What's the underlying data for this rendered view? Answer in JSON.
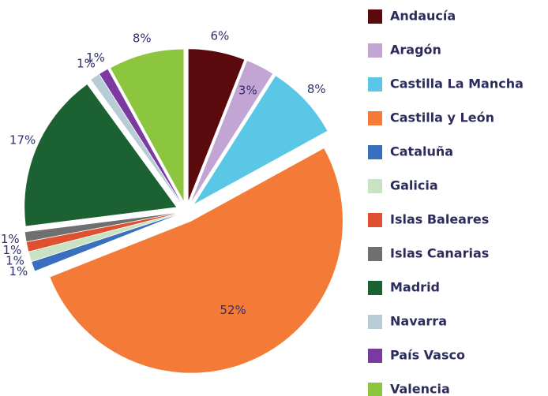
{
  "chart_data": {
    "type": "pie",
    "categories": [
      "Andaucía",
      "Aragón",
      "Castilla La Mancha",
      "Castilla y León",
      "Cataluña",
      "Galicia",
      "Islas Baleares",
      "Islas Canarias",
      "Madrid",
      "Navarra",
      "País Vasco",
      "Valencia"
    ],
    "values": [
      6,
      3,
      8,
      52,
      1,
      1,
      1,
      1,
      17,
      1,
      1,
      8
    ],
    "value_labels": [
      "6%",
      "3%",
      "8%",
      "52%",
      "1%",
      "1%",
      "1%",
      "1%",
      "17%",
      "1%",
      "1%",
      "8%"
    ],
    "colors": [
      "#5a0a0c",
      "#c3a5d3",
      "#5ac7e6",
      "#f47a38",
      "#3a6fbe",
      "#c8e2c2",
      "#df5030",
      "#6f6f6f",
      "#1b6131",
      "#b8ccd6",
      "#7a3aa0",
      "#8cc63f"
    ],
    "legend": "right"
  }
}
